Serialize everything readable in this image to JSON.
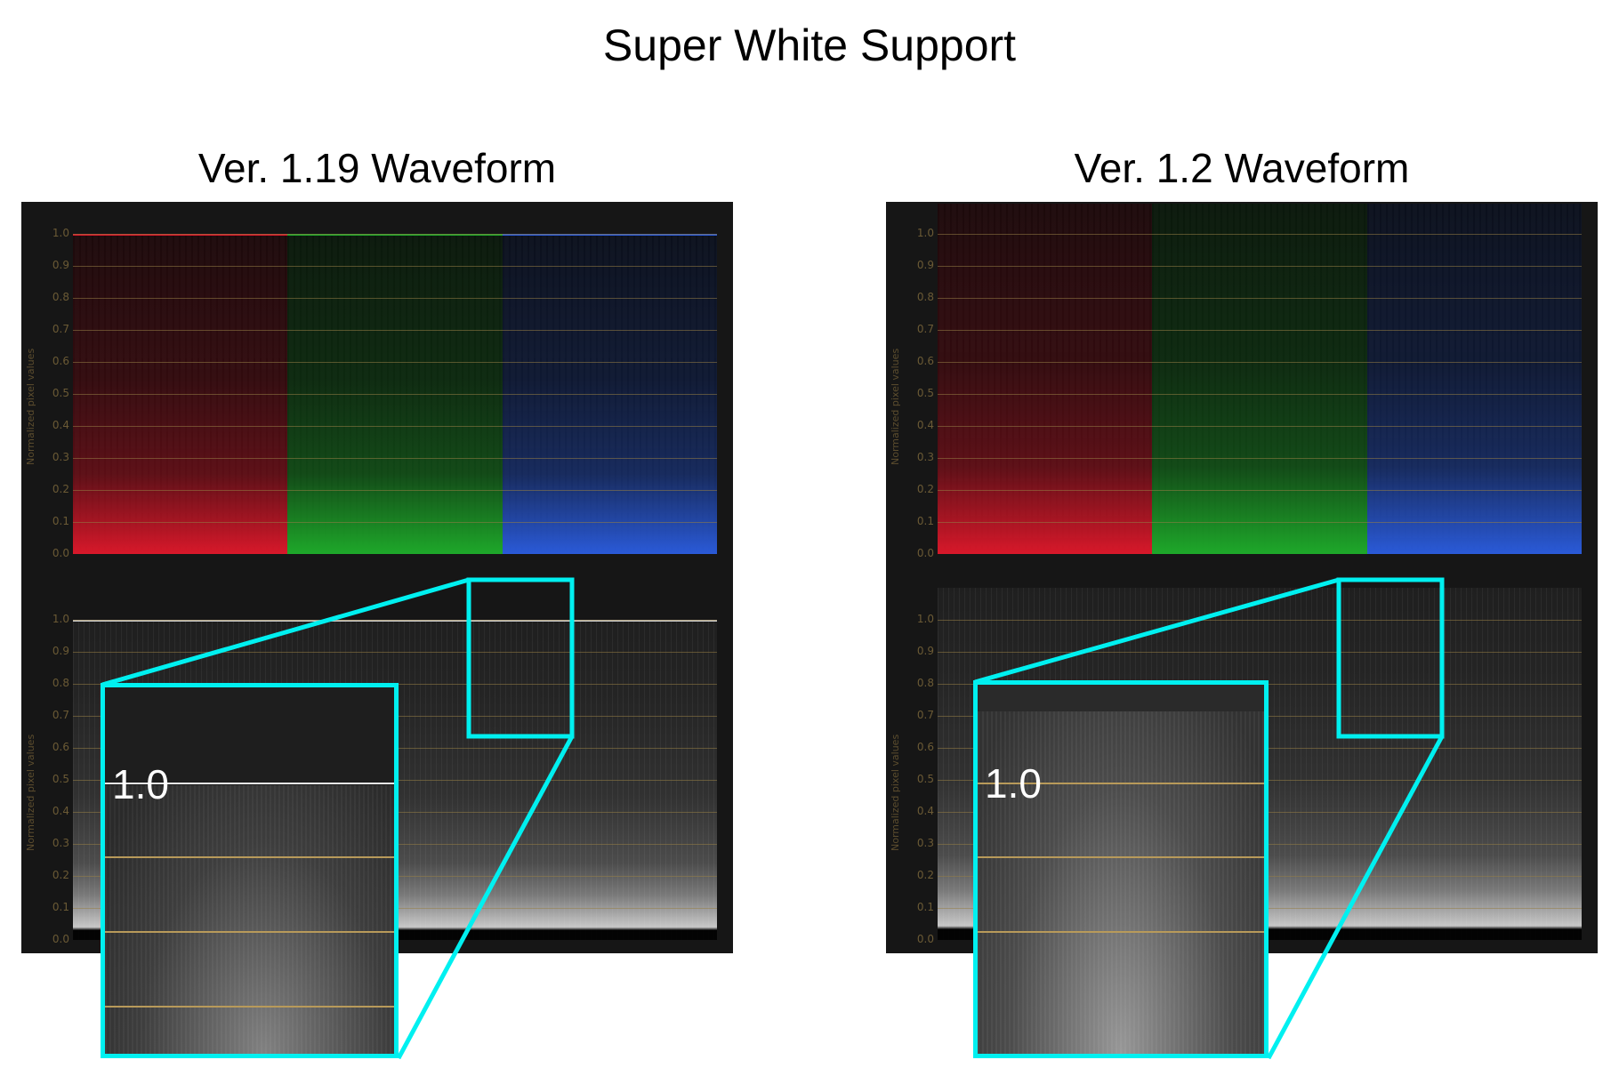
{
  "title": "Super White Support",
  "panels": [
    {
      "heading": "Ver. 1.19 Waveform",
      "y_axis_label": "Normalized pixel values",
      "y_ticks": [
        "1.0",
        "0.9",
        "0.8",
        "0.7",
        "0.6",
        "0.5",
        "0.4",
        "0.3",
        "0.2",
        "0.1",
        "0.0"
      ],
      "top_scope": {
        "type": "RGB parade",
        "channels": [
          "red",
          "green",
          "blue"
        ],
        "clipped_at": "1.0"
      },
      "bottom_scope": {
        "type": "luma",
        "clipped_at": "1.0"
      },
      "zoom_label": "1.0"
    },
    {
      "heading": "Ver. 1.2 Waveform",
      "y_axis_label": "Normalized pixel values",
      "y_ticks": [
        "1.0",
        "0.9",
        "0.8",
        "0.7",
        "0.6",
        "0.5",
        "0.4",
        "0.3",
        "0.2",
        "0.1",
        "0.0"
      ],
      "top_scope": {
        "type": "RGB parade",
        "channels": [
          "red",
          "green",
          "blue"
        ],
        "clipped_at": "none (values above 1.0 shown)"
      },
      "bottom_scope": {
        "type": "luma",
        "clipped_at": "none (values above 1.0 shown)"
      },
      "zoom_label": "1.0"
    }
  ],
  "colors": {
    "panel_bg": "#161616",
    "highlight": "#00f0f0",
    "grid": "#8a7446",
    "red": "#d8182a",
    "green": "#1ea82a",
    "blue": "#2a5ad8"
  }
}
